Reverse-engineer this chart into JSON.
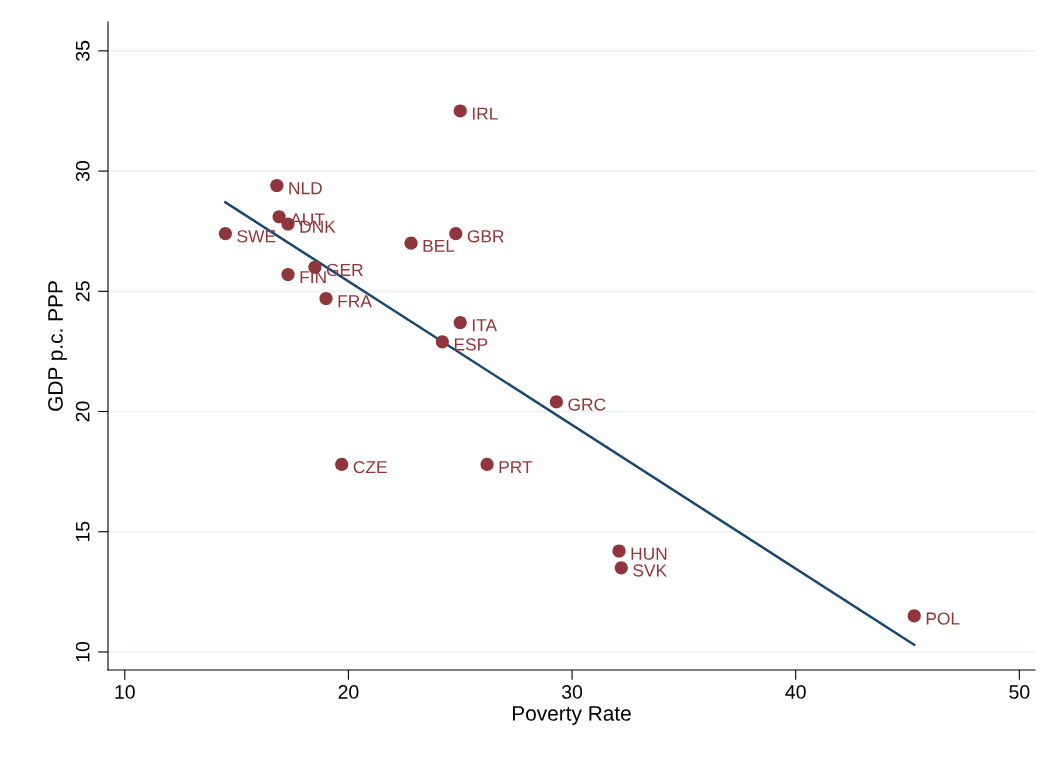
{
  "chart_data": {
    "type": "scatter",
    "xlabel": "Poverty Rate",
    "ylabel": "GDP p.c. PPP",
    "xlim": [
      9.25,
      50.7
    ],
    "ylim": [
      9.25,
      36.2
    ],
    "xticks": [
      10,
      20,
      30,
      40,
      50
    ],
    "yticks": [
      10,
      15,
      20,
      25,
      30,
      35
    ],
    "grid": "y",
    "series": [
      {
        "marker": "circle",
        "color": "#90353b",
        "x": [
          25.0,
          16.8,
          16.9,
          17.3,
          14.5,
          22.8,
          24.8,
          18.5,
          17.3,
          19.0,
          25.0,
          24.2,
          29.3,
          19.7,
          26.2,
          32.1,
          32.2,
          45.3
        ],
        "values": [
          32.5,
          29.4,
          28.1,
          27.8,
          27.4,
          27.0,
          27.4,
          26.0,
          25.7,
          24.7,
          23.7,
          22.9,
          20.4,
          17.8,
          17.8,
          14.2,
          13.5,
          11.5
        ]
      },
      {
        "type": "line",
        "marker": "none",
        "color": "#1a476f",
        "x": [
          14.5,
          45.3
        ],
        "values": [
          28.7,
          10.3
        ]
      }
    ],
    "annotations": [
      {
        "text": "IRL",
        "x": 25.0,
        "y": 32.5
      },
      {
        "text": "NLD",
        "x": 16.8,
        "y": 29.4
      },
      {
        "text": "AUT",
        "x": 16.9,
        "y": 28.1
      },
      {
        "text": "DNK",
        "x": 17.3,
        "y": 27.8
      },
      {
        "text": "SWE",
        "x": 14.5,
        "y": 27.4
      },
      {
        "text": "BEL",
        "x": 22.8,
        "y": 27.0
      },
      {
        "text": "GBR",
        "x": 24.8,
        "y": 27.4
      },
      {
        "text": "GER",
        "x": 18.5,
        "y": 26.0
      },
      {
        "text": "FIN",
        "x": 17.3,
        "y": 25.7
      },
      {
        "text": "FRA",
        "x": 19.0,
        "y": 24.7
      },
      {
        "text": "ITA",
        "x": 25.0,
        "y": 23.7
      },
      {
        "text": "ESP",
        "x": 24.2,
        "y": 22.9
      },
      {
        "text": "GRC",
        "x": 29.3,
        "y": 20.4
      },
      {
        "text": "CZE",
        "x": 19.7,
        "y": 17.8
      },
      {
        "text": "PRT",
        "x": 26.2,
        "y": 17.8
      },
      {
        "text": "HUN",
        "x": 32.1,
        "y": 14.2
      },
      {
        "text": "SVK",
        "x": 32.2,
        "y": 13.5
      },
      {
        "text": "POL",
        "x": 45.3,
        "y": 11.5
      }
    ]
  }
}
